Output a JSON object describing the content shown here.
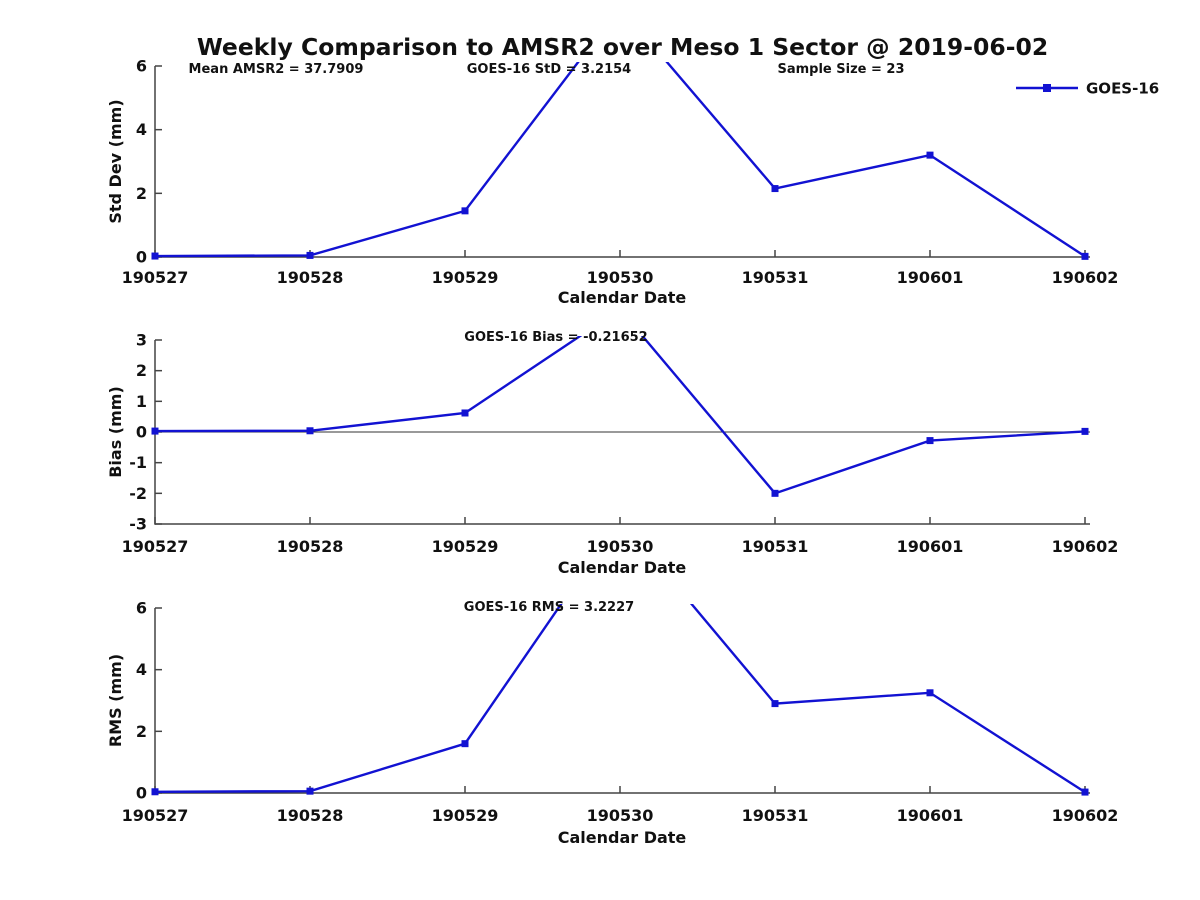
{
  "title": "Weekly Comparison to AMSR2 over Meso 1 Sector @ 2019-06-02",
  "legend": {
    "label": "GOES-16"
  },
  "colors": {
    "line": "#1212d2",
    "axis": "#444444",
    "zero_line": "#333333",
    "text": "#111111",
    "background": "#ffffff"
  },
  "chart_data": [
    {
      "type": "line",
      "ylabel": "Std Dev (mm)",
      "xlabel": "Calendar Date",
      "categories": [
        "190527",
        "190528",
        "190529",
        "190530",
        "190531",
        "190601",
        "190602"
      ],
      "series": [
        {
          "name": "GOES-16",
          "values": [
            0.03,
            0.05,
            1.45,
            7.85,
            2.15,
            3.2,
            0.02
          ]
        }
      ],
      "ylim": [
        0,
        6
      ],
      "yticks": [
        0,
        2,
        4,
        6
      ],
      "grid": false,
      "zero_line": false,
      "clipped_points": [
        "190530"
      ],
      "annotations": [
        {
          "text": "Mean AMSR2 = 37.7909",
          "x": 276
        },
        {
          "text": "GOES-16 StD = 3.2154",
          "x": 549
        },
        {
          "text": "Sample Size = 23",
          "x": 841
        }
      ]
    },
    {
      "type": "line",
      "ylabel": "Bias (mm)",
      "xlabel": "Calendar Date",
      "categories": [
        "190527",
        "190528",
        "190529",
        "190530",
        "190531",
        "190601",
        "190602"
      ],
      "series": [
        {
          "name": "GOES-16",
          "values": [
            0.03,
            0.04,
            0.62,
            4.0,
            -2.0,
            -0.28,
            0.02
          ]
        }
      ],
      "ylim": [
        -3,
        3
      ],
      "yticks": [
        -3,
        -2,
        -1,
        0,
        1,
        2,
        3
      ],
      "grid": false,
      "zero_line": true,
      "clipped_points": [
        "190530"
      ],
      "annotations": [
        {
          "text": "GOES-16 Bias  = -0.21652",
          "x": 556
        }
      ]
    },
    {
      "type": "line",
      "ylabel": "RMS (mm)",
      "xlabel": "Calendar Date",
      "categories": [
        "190527",
        "190528",
        "190529",
        "190530",
        "190531",
        "190601",
        "190602"
      ],
      "series": [
        {
          "name": "GOES-16",
          "values": [
            0.04,
            0.06,
            1.6,
            8.9,
            2.9,
            3.25,
            0.03
          ]
        }
      ],
      "ylim": [
        0,
        6
      ],
      "yticks": [
        0,
        2,
        4,
        6
      ],
      "grid": false,
      "zero_line": false,
      "clipped_points": [
        "190530"
      ],
      "annotations": [
        {
          "text": "GOES-16 RMS = 3.2227",
          "x": 549
        }
      ]
    }
  ]
}
